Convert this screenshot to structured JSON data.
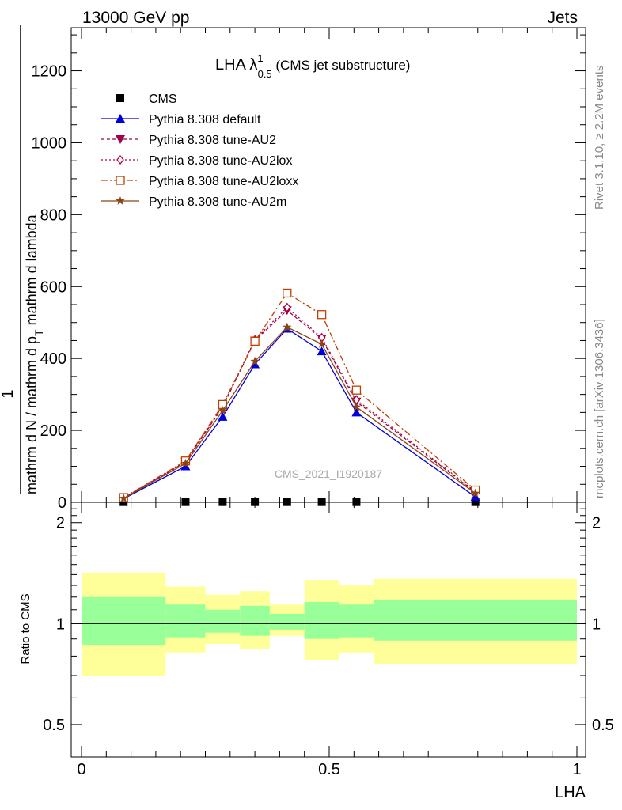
{
  "header": {
    "left": "13000 GeV pp",
    "right": "Jets"
  },
  "side_labels": {
    "rivet": "Rivet 3.1.10, ≥ 2.2M events",
    "mcplots": "mcplots.cern.ch [arXiv:1306.3436]"
  },
  "watermark": "CMS_2021_I1920187",
  "top_ylabel": {
    "numerator": "1",
    "denominator": "mathrm d N / mathrm d p",
    "denominator2": "mathrm d p",
    "denominator_sub": "T",
    "denominator_rest": " mathrm d lambda"
  },
  "ratio_ylabel": "Ratio to CMS",
  "xlabel": "LHA",
  "colors": {
    "default": "#0000dd",
    "au2": "#a0004a",
    "au2lox": "#b0003a",
    "au2loxx": "#c04000",
    "au2m": "#8b4513",
    "band_inner": "#99ff99",
    "band_outer": "#ffff99"
  },
  "chart_data": [
    {
      "type": "line",
      "title": "LHA λ",
      "title_sup": "1",
      "title_sub": "0.5",
      "title_suffix": " (CMS jet substructure)",
      "xlabel": "",
      "xlim": [
        0,
        1
      ],
      "ylim": [
        0,
        1320
      ],
      "yticks": [
        0,
        200,
        400,
        600,
        800,
        1000,
        1200
      ],
      "ytick_labels": [
        "0",
        "200",
        "400",
        "600",
        "800",
        "1000",
        "1200"
      ],
      "legend": "top-left",
      "x": [
        0.085,
        0.21,
        0.285,
        0.35,
        0.415,
        0.485,
        0.555,
        0.795
      ],
      "series": [
        {
          "name": "CMS",
          "marker": "square",
          "values": [
            0.7,
            0.7,
            0.7,
            0.7,
            0.7,
            0.7,
            0.7,
            0.7
          ]
        },
        {
          "name": "Pythia 8.308 default",
          "marker": "triangle-up",
          "values": [
            10,
            100,
            238,
            384,
            483,
            420,
            250,
            15
          ]
        },
        {
          "name": "Pythia 8.308 tune-AU2",
          "marker": "triangle-down",
          "values": [
            12,
            112,
            265,
            450,
            534,
            455,
            280,
            28
          ]
        },
        {
          "name": "Pythia 8.308 tune-AU2lox",
          "marker": "diamond-open",
          "values": [
            12,
            113,
            268,
            452,
            542,
            458,
            285,
            30
          ]
        },
        {
          "name": "Pythia 8.308 tune-AU2loxx",
          "marker": "square-open",
          "values": [
            13,
            115,
            272,
            448,
            582,
            522,
            312,
            34
          ]
        },
        {
          "name": "Pythia 8.308 tune-AU2m",
          "marker": "star",
          "values": [
            11,
            108,
            255,
            392,
            487,
            440,
            265,
            25
          ]
        }
      ]
    },
    {
      "type": "area",
      "xlabel": "LHA",
      "ylabel": "Ratio to CMS",
      "xlim": [
        0,
        1
      ],
      "ylim": [
        0.4,
        2.3
      ],
      "yscale": "log",
      "yticks": [
        0.5,
        1,
        2
      ],
      "ytick_labels": [
        "0.5",
        "1",
        "2"
      ],
      "xticks": [
        0,
        0.5,
        1
      ],
      "xtick_labels": [
        "0",
        "0.5",
        "1"
      ],
      "bin_edges": [
        0,
        0.17,
        0.25,
        0.32,
        0.38,
        0.45,
        0.52,
        0.59,
        1.0
      ],
      "inner_band": {
        "low": [
          0.86,
          0.91,
          0.94,
          0.92,
          0.96,
          0.9,
          0.91,
          0.89
        ],
        "high": [
          1.2,
          1.14,
          1.1,
          1.13,
          1.07,
          1.16,
          1.14,
          1.18
        ]
      },
      "outer_band": {
        "low": [
          0.7,
          0.82,
          0.87,
          0.84,
          0.92,
          0.78,
          0.82,
          0.76
        ],
        "high": [
          1.42,
          1.29,
          1.22,
          1.25,
          1.14,
          1.35,
          1.3,
          1.36
        ]
      },
      "reference": 1
    }
  ]
}
